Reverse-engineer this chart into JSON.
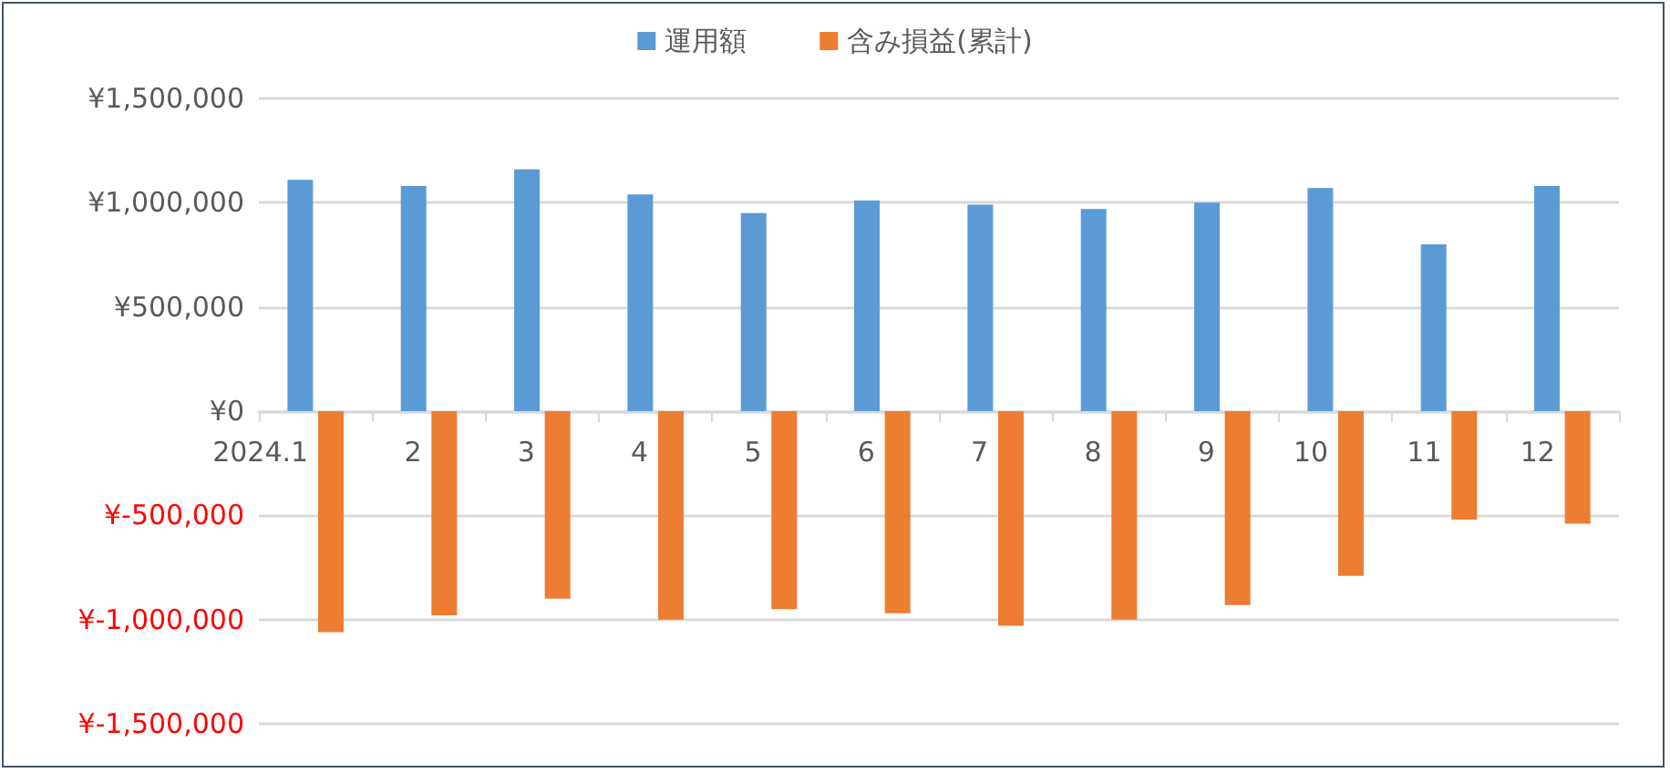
{
  "chart_data": {
    "type": "bar",
    "categories": [
      "2024.1",
      "2",
      "3",
      "4",
      "5",
      "6",
      "7",
      "8",
      "9",
      "10",
      "11",
      "12"
    ],
    "series": [
      {
        "name": "運用額",
        "color": "#5b9bd5",
        "values": [
          1110000,
          1080000,
          1160000,
          1040000,
          950000,
          1010000,
          990000,
          970000,
          1000000,
          1070000,
          800000,
          1080000
        ]
      },
      {
        "name": "含み損益(累計)",
        "color": "#ed7d31",
        "values": [
          -1060000,
          -980000,
          -900000,
          -1000000,
          -950000,
          -970000,
          -1030000,
          -1000000,
          -930000,
          -790000,
          -520000,
          -540000
        ]
      }
    ],
    "ylim": [
      -1500000,
      1500000
    ],
    "yticks": [
      {
        "value": -1500000,
        "label": "¥-1,500,000"
      },
      {
        "value": -1000000,
        "label": "¥-1,000,000"
      },
      {
        "value": -500000,
        "label": "¥-500,000"
      },
      {
        "value": 0,
        "label": "¥0"
      },
      {
        "value": 500000,
        "label": "¥500,000"
      },
      {
        "value": 1000000,
        "label": "¥1,000,000"
      },
      {
        "value": 1500000,
        "label": "¥1,500,000"
      }
    ],
    "grid": "y",
    "legend": "top"
  }
}
